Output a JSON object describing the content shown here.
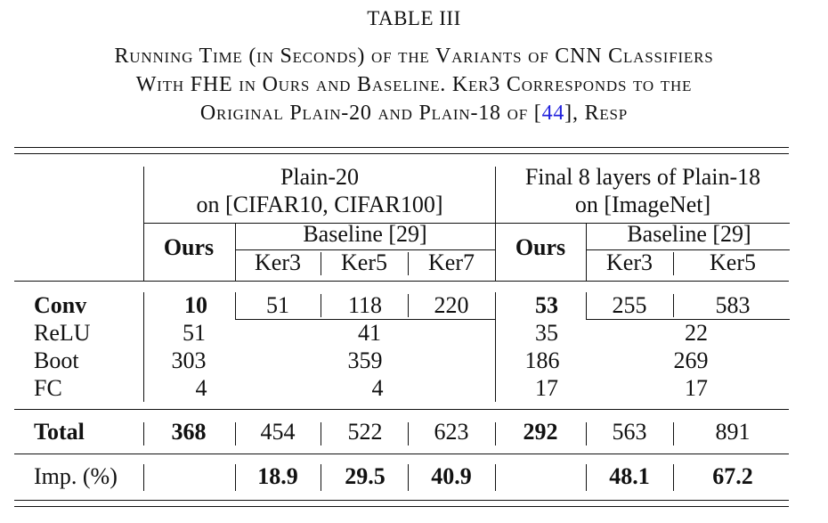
{
  "table_label": "TABLE III",
  "caption": {
    "line1": "Running Time (in Seconds) of the Variants of CNN Classifiers",
    "line2": "With FHE in Ours and Baseline. Ker3 Corresponds to the",
    "line3_pre": "Original Plain-20 and Plain-18 of [",
    "line3_ref": "44",
    "line3_post": "], Resp"
  },
  "header": {
    "group1_line1": "Plain-20",
    "group1_line2": "on [CIFAR10, CIFAR100]",
    "group2_line1": "Final 8 layers of Plain-18",
    "group2_line2": "on [ImageNet]",
    "ours": "Ours",
    "baseline": "Baseline [29]",
    "ker3": "Ker3",
    "ker5": "Ker5",
    "ker7": "Ker7"
  },
  "rows": {
    "conv": {
      "label": "Conv",
      "p_ours": "10",
      "p_k3": "51",
      "p_k5": "118",
      "p_k7": "220",
      "i_ours": "53",
      "i_k3": "255",
      "i_k5": "583"
    },
    "relu": {
      "label": "ReLU",
      "p_ours": "51",
      "p_base": "41",
      "i_ours": "35",
      "i_base": "22"
    },
    "boot": {
      "label": "Boot",
      "p_ours": "303",
      "p_base": "359",
      "i_ours": "186",
      "i_base": "269"
    },
    "fc": {
      "label": "FC",
      "p_ours": "4",
      "p_base": "4",
      "i_ours": "17",
      "i_base": "17"
    },
    "total": {
      "label": "Total",
      "p_ours": "368",
      "p_k3": "454",
      "p_k5": "522",
      "p_k7": "623",
      "i_ours": "292",
      "i_k3": "563",
      "i_k5": "891"
    },
    "imp": {
      "label": "Imp. (%)",
      "p_k3": "18.9",
      "p_k5": "29.5",
      "p_k7": "40.9",
      "i_k3": "48.1",
      "i_k5": "67.2"
    }
  }
}
